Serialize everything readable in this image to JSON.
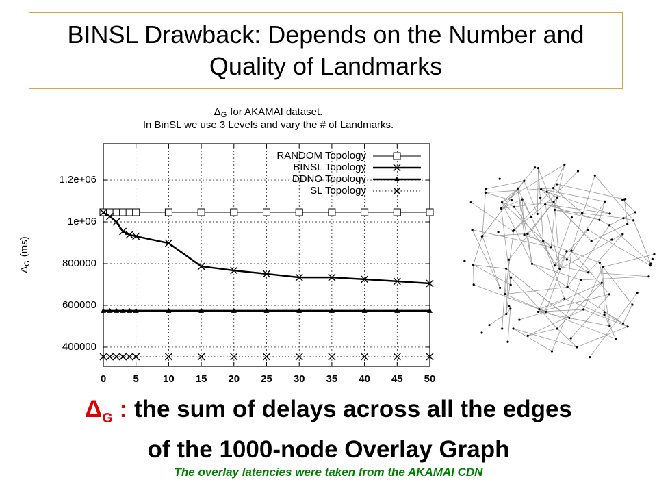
{
  "slide": {
    "title": "BINSL Drawback: Depends on the Number and Quality of Landmarks",
    "definition": {
      "symbol": "Δ",
      "subscript": "G",
      "colon": ":",
      "lines": [
        "the sum of delays across all the edges",
        "of the 1000-node Overlay Graph"
      ]
    },
    "note": "The overlay latencies were taken from the AKAMAI CDN"
  },
  "chart_data": {
    "type": "line",
    "title": [
      "Δ",
      "G",
      "for AKAMAI dataset."
    ],
    "subtitle": "In BinSL we use 3 Levels and vary the # of Landmarks.",
    "ylabel": [
      "Δ",
      "G",
      "(ms)"
    ],
    "x": [
      0,
      1,
      2,
      3,
      4,
      5,
      10,
      15,
      20,
      25,
      30,
      35,
      40,
      45,
      50
    ],
    "xlim": [
      0,
      50
    ],
    "xticks": [
      0,
      5,
      10,
      15,
      20,
      25,
      30,
      35,
      40,
      45,
      50
    ],
    "ylim": [
      308000,
      1374000
    ],
    "yticks": [
      400000,
      600000,
      800000,
      {
        "value": 1000000,
        "label": "1e+06"
      },
      {
        "value": 1200000,
        "label": "1.2e+06"
      }
    ],
    "grid": true,
    "legend": "top-right",
    "series": [
      {
        "name": "RANDOM Topology",
        "color": "#000000",
        "marker": "square",
        "width": 1,
        "dotted": false,
        "values": [
          1046000,
          1046000,
          1046000,
          1046000,
          1046000,
          1046000,
          1046000,
          1046000,
          1046000,
          1046000,
          1046000,
          1046000,
          1046000,
          1046000,
          1046000
        ]
      },
      {
        "name": "BINSL Topology",
        "color": "#000000",
        "marker": "cross",
        "width": 2.5,
        "dotted": false,
        "values": [
          1045000,
          1026000,
          1000000,
          954000,
          938000,
          931000,
          898000,
          787000,
          767000,
          751000,
          734000,
          734000,
          725000,
          715000,
          705000
        ]
      },
      {
        "name": "DDNO Topology",
        "color": "#000000",
        "marker": "triangle",
        "width": 2.5,
        "dotted": false,
        "values": [
          574000,
          574000,
          574000,
          574000,
          574000,
          574000,
          574000,
          574000,
          574000,
          574000,
          574000,
          574000,
          574000,
          574000,
          574000
        ]
      },
      {
        "name": "SL Topology",
        "color": "#000000",
        "marker": "cross",
        "width": 1,
        "dotted": true,
        "values": [
          354000,
          354000,
          354000,
          354000,
          354000,
          354000,
          354000,
          354000,
          354000,
          354000,
          354000,
          354000,
          354000,
          354000,
          354000
        ]
      }
    ]
  }
}
